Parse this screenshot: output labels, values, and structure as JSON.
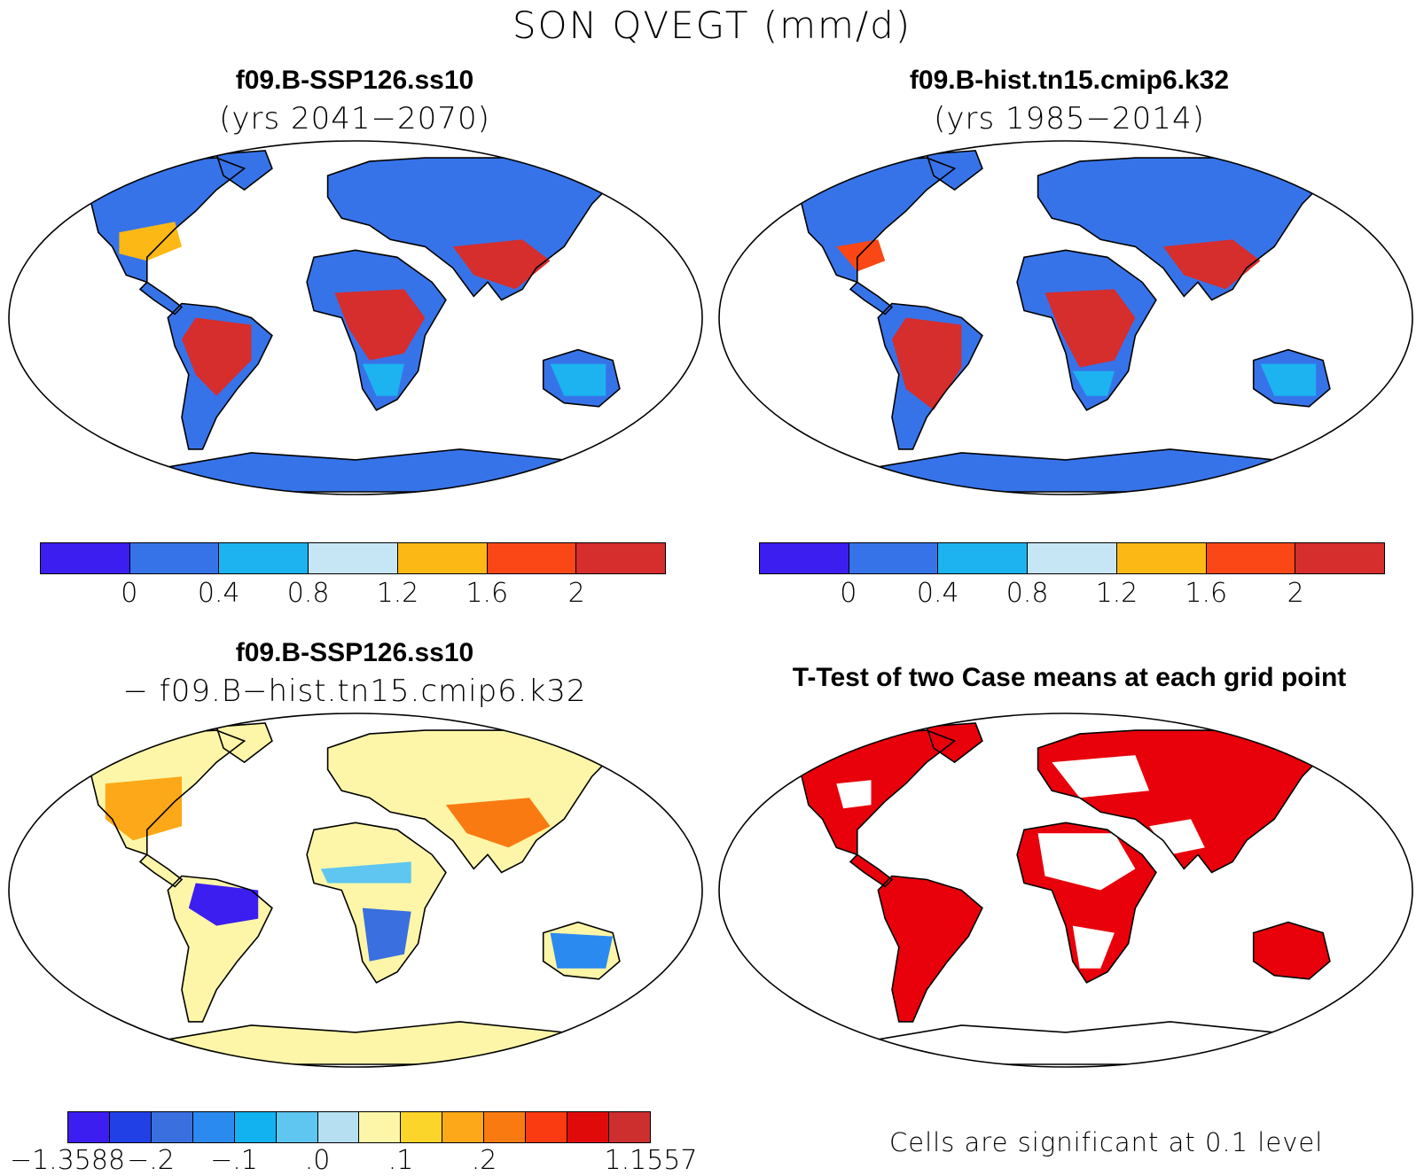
{
  "figure": {
    "title": "SON QVEGT (mm/d)"
  },
  "panels": [
    {
      "title": "f09.B-SSP126.ss10",
      "subtitle": "(yrs 2041−2070)",
      "field": "case"
    },
    {
      "title": "f09.B-hist.tn15.cmip6.k32",
      "subtitle": "(yrs 1985−2014)",
      "field": "control"
    },
    {
      "title": "f09.B-SSP126.ss10",
      "subtitle": "− f09.B−hist.tn15.cmip6.k32",
      "field": "difference"
    },
    {
      "title": "T-Test of two Case means at each grid point",
      "field": "significance"
    }
  ],
  "colorbar_abs": {
    "colors": [
      "#3c1ef0",
      "#3773e8",
      "#1cb3f0",
      "#c7e6f5",
      "#fcb815",
      "#fa4715",
      "#d62d2d"
    ],
    "labels": [
      "0",
      "0.4",
      "0.8",
      "1.2",
      "1.6",
      "2"
    ]
  },
  "colorbar_diff": {
    "colors": [
      "#3c1ef0",
      "#2141e6",
      "#3a6fe0",
      "#2b8af0",
      "#12b1ef",
      "#5ec6f0",
      "#b6e0f2",
      "#fdf6a8",
      "#fcd52a",
      "#fca818",
      "#fa7a12",
      "#fa3a10",
      "#e00a0a",
      "#cd2f2f"
    ],
    "labels": [
      "−1.3588",
      "−.2",
      "−.1",
      ".0",
      ".1",
      ".2",
      "1.1557"
    ]
  },
  "significance_note": "Cells are significant at 0.1 level",
  "chart_data": {
    "type": "heatmap",
    "variable": "QVEGT",
    "units": "mm/d",
    "season": "SON",
    "projection": "Robinson",
    "case": "f09.B-SSP126.ss10",
    "case_years": "2041−2070",
    "control": "f09.B-hist.tn15.cmip6.k32",
    "control_years": "1985−2014",
    "abs_levels": [
      0,
      0.4,
      0.8,
      1.2,
      1.6,
      2
    ],
    "diff_levels_labeled": [
      -1.3588,
      -0.2,
      -0.1,
      0.0,
      0.1,
      0.2,
      1.1557
    ],
    "significance_level": 0.1
  }
}
